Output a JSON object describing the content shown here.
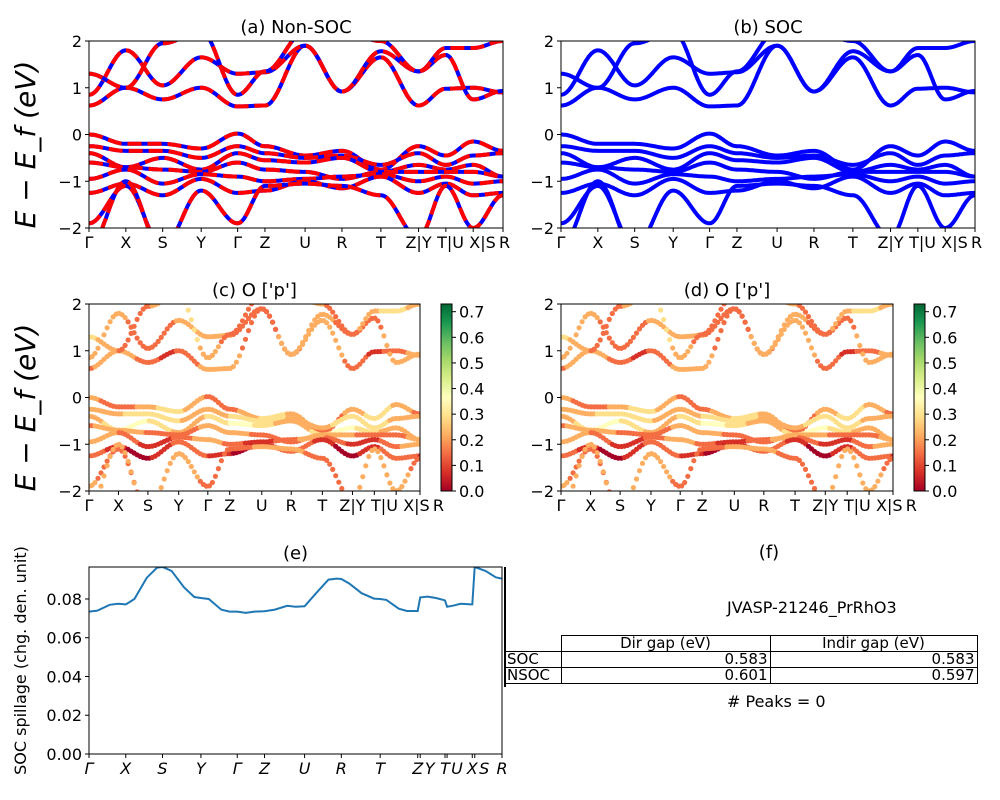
{
  "figure": {
    "title_material": "JVASP-21246_PrRhO3",
    "ylabel_bands": "E − E_f (eV)",
    "ylabel_spillage": "SOC spillage (chg. den. unit)"
  },
  "kpath": {
    "labels": [
      "Γ",
      "X",
      "S",
      "Y",
      "Γ",
      "Z",
      "U",
      "R",
      "T",
      "Z|Y",
      "T|U",
      "X|S",
      "R"
    ],
    "positions": [
      0,
      0.089,
      0.178,
      0.271,
      0.359,
      0.425,
      0.522,
      0.611,
      0.705,
      0.796,
      0.862,
      0.928,
      1.0
    ],
    "spillage_labels": [
      "Γ",
      "X",
      "S",
      "Y",
      "Γ",
      "Z",
      "U",
      "R",
      "T",
      "Z",
      "Y",
      "T",
      "U",
      "X",
      "S",
      "R"
    ],
    "spillage_positions": [
      0,
      0.089,
      0.178,
      0.271,
      0.359,
      0.425,
      0.522,
      0.611,
      0.705,
      0.796,
      0.802,
      0.862,
      0.867,
      0.928,
      0.934,
      1.0
    ]
  },
  "chart_data": [
    {
      "id": "a",
      "type": "line",
      "title": "(a) Non-SOC",
      "xlabel": "",
      "ylabel": "E − E_f (eV)",
      "ylim": [
        -2,
        2
      ],
      "yticks": [
        -2,
        -1,
        0,
        1,
        2
      ],
      "style": "red-blue-dashed",
      "colors": {
        "primary": "#ff0000",
        "secondary": "#0000ff"
      },
      "grid": false
    },
    {
      "id": "b",
      "type": "line",
      "title": "(b) SOC",
      "xlabel": "",
      "ylabel": "",
      "ylim": [
        -2,
        2
      ],
      "yticks": [
        -2,
        -1,
        0,
        1,
        2
      ],
      "style": "blue-solid",
      "colors": {
        "primary": "#0000ff"
      },
      "grid": false
    },
    {
      "id": "c",
      "type": "scatter",
      "title": "(c)  O ['p']",
      "ylabel": "E − E_f (eV)",
      "ylim": [
        -2,
        2
      ],
      "yticks": [
        -2,
        -1,
        0,
        1,
        2
      ],
      "colorbar": {
        "cmap": "RdYlGn",
        "range": [
          0,
          0.73
        ],
        "ticks": [
          "0.0",
          "0.1",
          "0.2",
          "0.3",
          "0.4",
          "0.5",
          "0.6",
          "0.7"
        ]
      },
      "grid": false
    },
    {
      "id": "d",
      "type": "scatter",
      "title": "(d) O ['p']",
      "ylabel": "",
      "ylim": [
        -2,
        2
      ],
      "yticks": [
        -2,
        -1,
        0,
        1,
        2
      ],
      "colorbar": {
        "cmap": "RdYlGn",
        "range": [
          0,
          0.73
        ],
        "ticks": [
          "0.0",
          "0.1",
          "0.2",
          "0.3",
          "0.4",
          "0.5",
          "0.6",
          "0.7"
        ]
      },
      "grid": false
    },
    {
      "id": "e",
      "type": "line",
      "title": "(e)",
      "ylabel": "SOC spillage (chg. den. unit)",
      "ylim": [
        0,
        0.0965
      ],
      "yticks": [
        "0.00",
        "0.02",
        "0.04",
        "0.06",
        "0.08"
      ],
      "color": "#1f77b4",
      "series": [
        {
          "name": "spillage",
          "x": [
            0,
            0.02,
            0.05,
            0.07,
            0.089,
            0.11,
            0.14,
            0.165,
            0.178,
            0.2,
            0.23,
            0.255,
            0.271,
            0.29,
            0.32,
            0.34,
            0.359,
            0.38,
            0.4,
            0.425,
            0.45,
            0.48,
            0.5,
            0.522,
            0.55,
            0.58,
            0.6,
            0.611,
            0.63,
            0.66,
            0.69,
            0.705,
            0.72,
            0.75,
            0.77,
            0.795,
            0.796,
            0.802,
            0.82,
            0.84,
            0.858,
            0.862,
            0.867,
            0.88,
            0.9,
            0.925,
            0.928,
            0.934,
            0.96,
            0.985,
            1.0
          ],
          "y": [
            0.0735,
            0.074,
            0.077,
            0.0775,
            0.0772,
            0.08,
            0.091,
            0.0962,
            0.0965,
            0.0945,
            0.086,
            0.081,
            0.0805,
            0.08,
            0.0745,
            0.0735,
            0.0735,
            0.0728,
            0.0735,
            0.0737,
            0.0745,
            0.0765,
            0.076,
            0.0762,
            0.083,
            0.09,
            0.0905,
            0.0903,
            0.088,
            0.083,
            0.0802,
            0.08,
            0.0795,
            0.075,
            0.0738,
            0.0738,
            0.0738,
            0.0808,
            0.0812,
            0.0805,
            0.0795,
            0.0792,
            0.076,
            0.0765,
            0.0775,
            0.0772,
            0.0772,
            0.0965,
            0.0945,
            0.0912,
            0.0905
          ]
        }
      ],
      "grid": false
    }
  ],
  "panel_f": {
    "title": "(f)",
    "table": {
      "columns": [
        "",
        "Dir gap (eV)",
        "Indir gap (eV)"
      ],
      "rows": [
        {
          "label": "SOC",
          "dir_gap": "0.583",
          "indir_gap": "0.583"
        },
        {
          "label": "NSOC",
          "dir_gap": "0.601",
          "indir_gap": "0.597"
        }
      ]
    },
    "peaks_text": "# Peaks = 0"
  }
}
